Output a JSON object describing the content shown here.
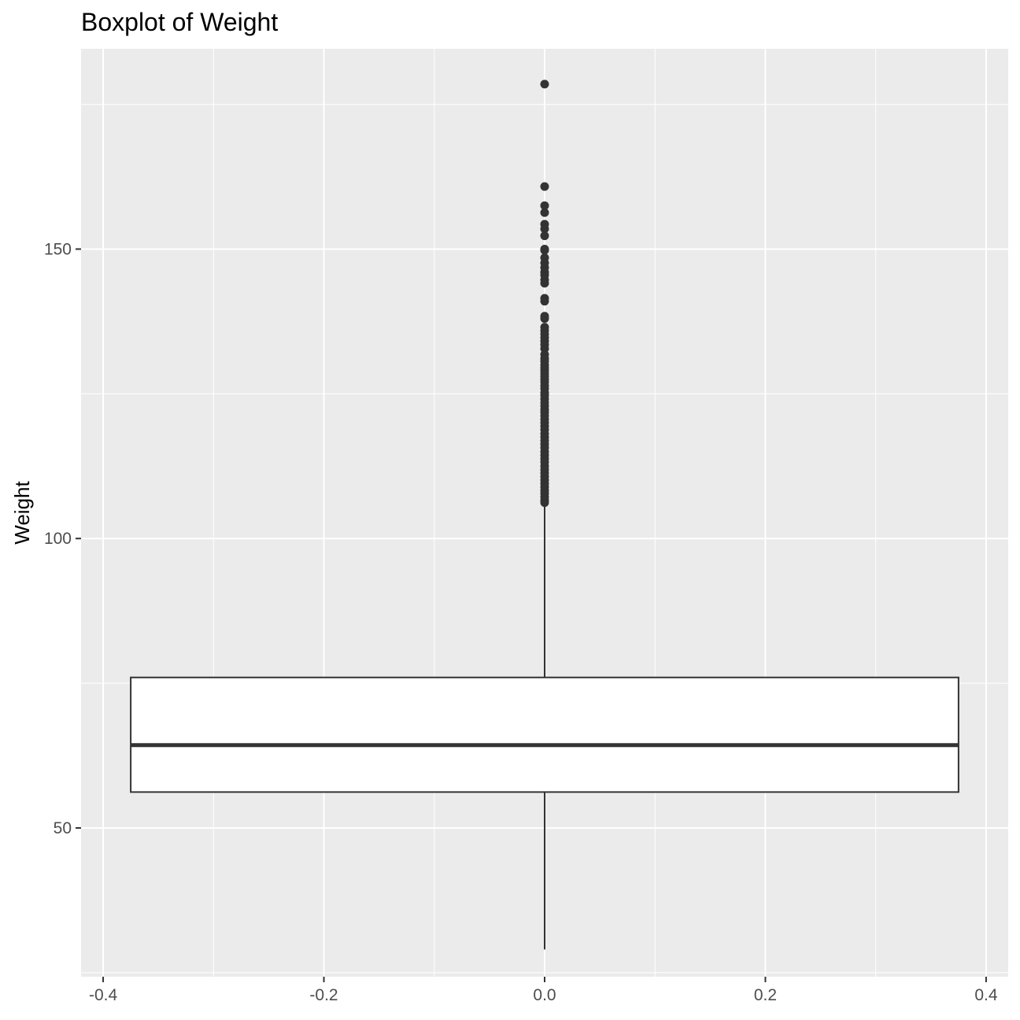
{
  "chart_data": {
    "type": "boxplot",
    "title": "Boxplot of Weight",
    "xlabel": "",
    "ylabel": "Weight",
    "xlim": [
      -0.42,
      0.42
    ],
    "ylim": [
      24.3,
      184.6
    ],
    "x_ticks": [
      -0.4,
      -0.2,
      0.0,
      0.2,
      0.4
    ],
    "x_tick_labels": [
      "-0.4",
      "-0.2",
      "0.0",
      "0.2",
      "0.4"
    ],
    "y_ticks": [
      50,
      100,
      150
    ],
    "y_tick_labels": [
      "50",
      "100",
      "150"
    ],
    "grid": true,
    "box": {
      "x_center": 0.0,
      "width": 0.75,
      "min": 29.0,
      "q1": 56.2,
      "median": 64.3,
      "q3": 76.0,
      "whisker_high": 106.0,
      "outliers": [
        178.5,
        160.8,
        157.5,
        156.3,
        154.3,
        153.5,
        152.3,
        150.0,
        149.8,
        148.5,
        147.6,
        146.8,
        146.0,
        145.5,
        144.7,
        144.1,
        141.5,
        141.0,
        138.4,
        138.0,
        136.5,
        135.9,
        135.3,
        134.7,
        134.1,
        133.5,
        132.8,
        131.8,
        131.1,
        130.6,
        130.0,
        129.5,
        129.0,
        128.5,
        128.0,
        127.5,
        127.0,
        126.4,
        125.9,
        125.2,
        124.7,
        124.1,
        123.5,
        122.9,
        122.3,
        121.8,
        121.2,
        120.6,
        120.0,
        119.4,
        118.8,
        118.1,
        117.5,
        116.9,
        116.3,
        115.7,
        115.0,
        114.4,
        113.8,
        113.2,
        112.5,
        111.9,
        111.3,
        110.7,
        110.1,
        109.5,
        108.9,
        108.3,
        107.8,
        107.2,
        106.6,
        106.2
      ]
    },
    "colors": {
      "panel": "#ebebeb",
      "grid_major": "#ffffff",
      "box_fill": "#ffffff",
      "box_line": "#333333",
      "outlier": "#333333"
    }
  }
}
